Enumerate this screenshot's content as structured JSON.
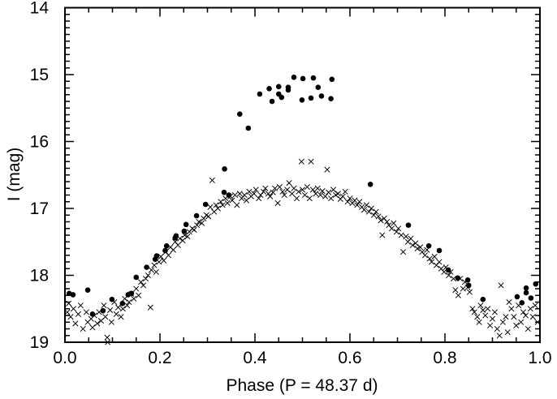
{
  "chart_data": {
    "type": "scatter",
    "title": "",
    "xlabel": "Phase (P = 48.37 d)",
    "ylabel": "I (mag)",
    "xlim": [
      0.0,
      1.0
    ],
    "ylim": [
      19,
      14
    ],
    "y_inverted": true,
    "x_ticks": [
      "0.0",
      "0.2",
      "0.4",
      "0.6",
      "0.8",
      "1.0"
    ],
    "x_tick_values": [
      0.0,
      0.2,
      0.4,
      0.6,
      0.8,
      1.0
    ],
    "y_ticks": [
      "14",
      "15",
      "16",
      "17",
      "18",
      "19"
    ],
    "y_tick_values": [
      14,
      15,
      16,
      17,
      18,
      19
    ],
    "grid": false,
    "series": [
      {
        "name": "filled circles",
        "marker": "circle",
        "color": "#000000",
        "points": [
          [
            0.482,
            15.04
          ],
          [
            0.501,
            15.06
          ],
          [
            0.523,
            15.05
          ],
          [
            0.562,
            15.07
          ],
          [
            0.41,
            15.29
          ],
          [
            0.43,
            15.21
          ],
          [
            0.45,
            15.18
          ],
          [
            0.47,
            15.19
          ],
          [
            0.47,
            15.23
          ],
          [
            0.436,
            15.4
          ],
          [
            0.45,
            15.29
          ],
          [
            0.456,
            15.34
          ],
          [
            0.499,
            15.38
          ],
          [
            0.518,
            15.35
          ],
          [
            0.533,
            15.19
          ],
          [
            0.54,
            15.32
          ],
          [
            0.56,
            15.36
          ],
          [
            0.368,
            15.59
          ],
          [
            0.386,
            15.8
          ],
          [
            0.336,
            16.41
          ],
          [
            0.335,
            16.76
          ],
          [
            0.345,
            16.8
          ],
          [
            0.296,
            16.94
          ],
          [
            0.277,
            17.11
          ],
          [
            0.255,
            17.24
          ],
          [
            0.643,
            16.64
          ],
          [
            0.251,
            17.34
          ],
          [
            0.234,
            17.41
          ],
          [
            0.232,
            17.44
          ],
          [
            0.214,
            17.56
          ],
          [
            0.211,
            17.63
          ],
          [
            0.193,
            17.71
          ],
          [
            0.19,
            17.76
          ],
          [
            0.172,
            17.88
          ],
          [
            0.15,
            18.03
          ],
          [
            0.14,
            18.27
          ],
          [
            0.133,
            18.29
          ],
          [
            0.121,
            18.42
          ],
          [
            0.099,
            18.36
          ],
          [
            0.08,
            18.53
          ],
          [
            0.058,
            18.58
          ],
          [
            0.048,
            18.22
          ],
          [
            0.017,
            18.29
          ],
          [
            0.009,
            18.27
          ],
          [
            0.723,
            17.25
          ],
          [
            0.766,
            17.56
          ],
          [
            0.788,
            17.63
          ],
          [
            0.807,
            17.92
          ],
          [
            0.827,
            18.04
          ],
          [
            0.848,
            18.07
          ],
          [
            0.85,
            18.15
          ],
          [
            0.88,
            18.36
          ],
          [
            0.952,
            18.32
          ],
          [
            0.962,
            18.41
          ],
          [
            0.971,
            18.19
          ],
          [
            0.971,
            18.26
          ],
          [
            0.981,
            18.34
          ],
          [
            0.991,
            18.13
          ]
        ]
      },
      {
        "name": "crosses",
        "marker": "x",
        "color": "#000000",
        "points": [
          [
            0.005,
            18.55
          ],
          [
            0.008,
            18.42
          ],
          [
            0.012,
            18.62
          ],
          [
            0.018,
            18.5
          ],
          [
            0.022,
            18.72
          ],
          [
            0.028,
            18.58
          ],
          [
            0.033,
            18.45
          ],
          [
            0.038,
            18.8
          ],
          [
            0.045,
            18.55
          ],
          [
            0.048,
            18.7
          ],
          [
            0.055,
            18.65
          ],
          [
            0.058,
            18.78
          ],
          [
            0.062,
            18.6
          ],
          [
            0.068,
            18.72
          ],
          [
            0.072,
            18.55
          ],
          [
            0.076,
            18.68
          ],
          [
            0.082,
            18.45
          ],
          [
            0.085,
            18.62
          ],
          [
            0.089,
            18.93
          ],
          [
            0.09,
            19.0
          ],
          [
            0.095,
            18.52
          ],
          [
            0.098,
            18.7
          ],
          [
            0.104,
            18.4
          ],
          [
            0.108,
            18.58
          ],
          [
            0.112,
            18.48
          ],
          [
            0.118,
            18.62
          ],
          [
            0.122,
            18.5
          ],
          [
            0.126,
            18.35
          ],
          [
            0.131,
            18.45
          ],
          [
            0.135,
            18.4
          ],
          [
            0.14,
            18.28
          ],
          [
            0.145,
            18.35
          ],
          [
            0.15,
            18.2
          ],
          [
            0.155,
            18.3
          ],
          [
            0.16,
            18.1
          ],
          [
            0.165,
            18.15
          ],
          [
            0.17,
            18.05
          ],
          [
            0.175,
            18.0
          ],
          [
            0.18,
            18.48
          ],
          [
            0.182,
            17.92
          ],
          [
            0.188,
            17.85
          ],
          [
            0.192,
            17.95
          ],
          [
            0.198,
            17.8
          ],
          [
            0.202,
            17.72
          ],
          [
            0.208,
            17.78
          ],
          [
            0.212,
            17.65
          ],
          [
            0.218,
            17.7
          ],
          [
            0.222,
            17.58
          ],
          [
            0.228,
            17.62
          ],
          [
            0.232,
            17.5
          ],
          [
            0.238,
            17.55
          ],
          [
            0.242,
            17.45
          ],
          [
            0.248,
            17.48
          ],
          [
            0.252,
            17.4
          ],
          [
            0.258,
            17.42
          ],
          [
            0.262,
            17.35
          ],
          [
            0.268,
            17.3
          ],
          [
            0.272,
            17.32
          ],
          [
            0.278,
            17.25
          ],
          [
            0.282,
            17.2
          ],
          [
            0.288,
            17.22
          ],
          [
            0.292,
            17.15
          ],
          [
            0.298,
            17.1
          ],
          [
            0.302,
            17.12
          ],
          [
            0.306,
            16.98
          ],
          [
            0.31,
            16.58
          ],
          [
            0.314,
            17.05
          ],
          [
            0.318,
            16.95
          ],
          [
            0.322,
            17.0
          ],
          [
            0.328,
            16.9
          ],
          [
            0.332,
            16.95
          ],
          [
            0.338,
            16.85
          ],
          [
            0.342,
            16.92
          ],
          [
            0.348,
            16.82
          ],
          [
            0.352,
            16.88
          ],
          [
            0.358,
            16.8
          ],
          [
            0.362,
            16.95
          ],
          [
            0.368,
            16.78
          ],
          [
            0.372,
            16.85
          ],
          [
            0.378,
            16.8
          ],
          [
            0.382,
            16.88
          ],
          [
            0.388,
            16.75
          ],
          [
            0.392,
            16.82
          ],
          [
            0.398,
            16.78
          ],
          [
            0.402,
            16.72
          ],
          [
            0.408,
            16.85
          ],
          [
            0.412,
            16.8
          ],
          [
            0.418,
            16.75
          ],
          [
            0.422,
            16.7
          ],
          [
            0.428,
            16.78
          ],
          [
            0.432,
            16.82
          ],
          [
            0.438,
            16.76
          ],
          [
            0.442,
            16.7
          ],
          [
            0.448,
            16.92
          ],
          [
            0.452,
            16.68
          ],
          [
            0.458,
            16.75
          ],
          [
            0.462,
            16.8
          ],
          [
            0.468,
            16.72
          ],
          [
            0.472,
            16.62
          ],
          [
            0.478,
            16.78
          ],
          [
            0.482,
            16.7
          ],
          [
            0.488,
            16.85
          ],
          [
            0.492,
            16.75
          ],
          [
            0.498,
            16.3
          ],
          [
            0.5,
            16.72
          ],
          [
            0.505,
            16.8
          ],
          [
            0.51,
            16.68
          ],
          [
            0.515,
            16.85
          ],
          [
            0.518,
            16.3
          ],
          [
            0.522,
            16.72
          ],
          [
            0.528,
            16.78
          ],
          [
            0.532,
            16.7
          ],
          [
            0.538,
            16.8
          ],
          [
            0.542,
            16.74
          ],
          [
            0.548,
            16.82
          ],
          [
            0.552,
            16.42
          ],
          [
            0.555,
            16.76
          ],
          [
            0.56,
            16.85
          ],
          [
            0.565,
            16.72
          ],
          [
            0.57,
            16.8
          ],
          [
            0.575,
            16.78
          ],
          [
            0.58,
            16.86
          ],
          [
            0.585,
            16.82
          ],
          [
            0.59,
            16.75
          ],
          [
            0.595,
            16.9
          ],
          [
            0.6,
            16.85
          ],
          [
            0.605,
            16.92
          ],
          [
            0.61,
            16.88
          ],
          [
            0.615,
            16.95
          ],
          [
            0.62,
            16.9
          ],
          [
            0.625,
            16.98
          ],
          [
            0.63,
            17.02
          ],
          [
            0.635,
            16.95
          ],
          [
            0.64,
            17.05
          ],
          [
            0.645,
            17.0
          ],
          [
            0.65,
            17.1
          ],
          [
            0.655,
            17.05
          ],
          [
            0.66,
            17.12
          ],
          [
            0.665,
            17.18
          ],
          [
            0.668,
            17.4
          ],
          [
            0.672,
            17.15
          ],
          [
            0.678,
            17.2
          ],
          [
            0.682,
            17.25
          ],
          [
            0.688,
            17.3
          ],
          [
            0.692,
            17.22
          ],
          [
            0.698,
            17.35
          ],
          [
            0.702,
            17.3
          ],
          [
            0.708,
            17.4
          ],
          [
            0.712,
            17.65
          ],
          [
            0.718,
            17.42
          ],
          [
            0.722,
            17.5
          ],
          [
            0.728,
            17.45
          ],
          [
            0.732,
            17.55
          ],
          [
            0.738,
            17.52
          ],
          [
            0.742,
            17.6
          ],
          [
            0.748,
            17.58
          ],
          [
            0.752,
            17.65
          ],
          [
            0.758,
            17.7
          ],
          [
            0.762,
            17.62
          ],
          [
            0.768,
            17.75
          ],
          [
            0.772,
            17.8
          ],
          [
            0.778,
            17.72
          ],
          [
            0.782,
            17.85
          ],
          [
            0.788,
            17.8
          ],
          [
            0.792,
            17.9
          ],
          [
            0.798,
            17.95
          ],
          [
            0.802,
            17.88
          ],
          [
            0.808,
            18.0
          ],
          [
            0.812,
            17.95
          ],
          [
            0.818,
            18.05
          ],
          [
            0.822,
            18.22
          ],
          [
            0.828,
            18.3
          ],
          [
            0.832,
            18.05
          ],
          [
            0.838,
            18.2
          ],
          [
            0.842,
            18.1
          ],
          [
            0.848,
            18.18
          ],
          [
            0.852,
            18.25
          ],
          [
            0.858,
            18.5
          ],
          [
            0.862,
            18.55
          ],
          [
            0.868,
            18.62
          ],
          [
            0.872,
            18.7
          ],
          [
            0.875,
            18.45
          ],
          [
            0.88,
            18.52
          ],
          [
            0.885,
            18.6
          ],
          [
            0.89,
            18.5
          ],
          [
            0.895,
            18.75
          ],
          [
            0.9,
            18.65
          ],
          [
            0.905,
            18.55
          ],
          [
            0.91,
            18.8
          ],
          [
            0.915,
            18.9
          ],
          [
            0.918,
            18.15
          ],
          [
            0.922,
            18.7
          ],
          [
            0.928,
            18.62
          ],
          [
            0.932,
            18.85
          ],
          [
            0.935,
            18.4
          ],
          [
            0.94,
            18.5
          ],
          [
            0.945,
            18.62
          ],
          [
            0.95,
            18.75
          ],
          [
            0.955,
            18.45
          ],
          [
            0.96,
            18.7
          ],
          [
            0.965,
            18.55
          ],
          [
            0.97,
            18.6
          ],
          [
            0.975,
            18.8
          ],
          [
            0.98,
            18.5
          ],
          [
            0.985,
            18.62
          ],
          [
            0.99,
            18.45
          ],
          [
            0.995,
            18.7
          ]
        ]
      }
    ]
  }
}
